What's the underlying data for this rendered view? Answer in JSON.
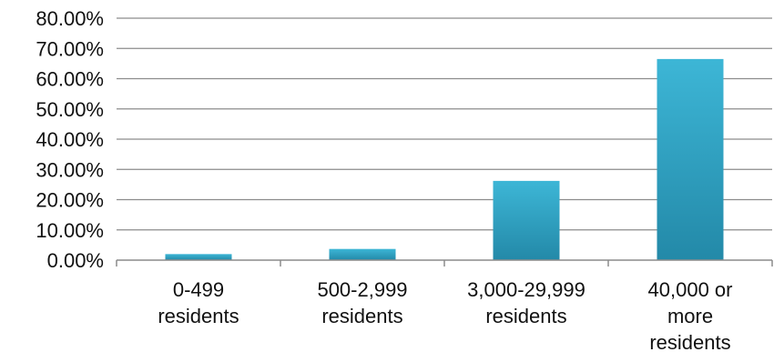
{
  "chart_data": {
    "type": "bar",
    "title": "",
    "xlabel": "",
    "ylabel": "",
    "categories": [
      [
        "0-499",
        "residents"
      ],
      [
        "500-2,999",
        "residents"
      ],
      [
        "3,000-29,999",
        "residents"
      ],
      [
        "40,000 or",
        "more",
        "residents"
      ]
    ],
    "values": [
      2.0,
      3.7,
      26.2,
      66.5
    ],
    "value_unit": "percent",
    "ylim": [
      0,
      80
    ],
    "yticks": [
      0,
      10,
      20,
      30,
      40,
      50,
      60,
      70,
      80
    ],
    "ytick_labels": [
      "0.00%",
      "10.00%",
      "20.00%",
      "30.00%",
      "40.00%",
      "50.00%",
      "60.00%",
      "70.00%",
      "80.00%"
    ],
    "grid": true,
    "legend": "none",
    "colors": {
      "bar_top": "#3db6d6",
      "bar_bottom": "#2389a8",
      "gridline": "#8c8c8c",
      "axis": "#8c8c8c"
    }
  }
}
